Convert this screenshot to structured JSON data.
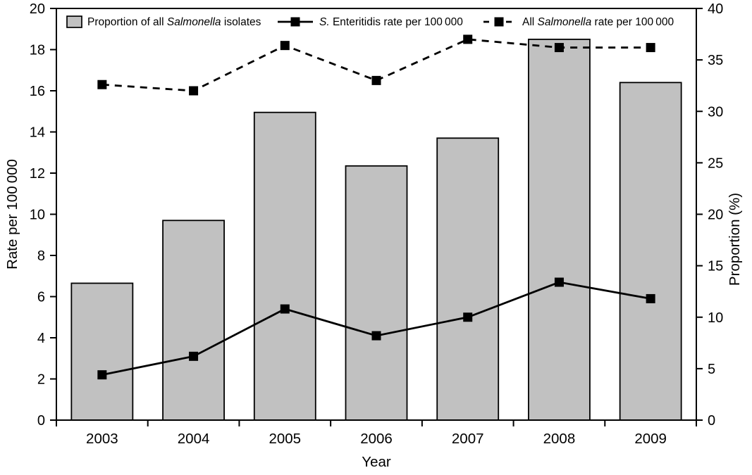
{
  "chart_data": {
    "type": "combo-bar-line",
    "title": "",
    "xlabel": "Year",
    "categories": [
      "2003",
      "2004",
      "2005",
      "2006",
      "2007",
      "2008",
      "2009"
    ],
    "series": [
      {
        "name": "Proportion of all Salmonella isolates",
        "type": "bar",
        "axis": "right",
        "unit": "%",
        "values": [
          13.3,
          19.4,
          29.9,
          24.7,
          27.4,
          37.0,
          32.8
        ],
        "legend_segments": [
          {
            "t": "Proportion of all "
          },
          {
            "t": "Salmonella",
            "i": true
          },
          {
            "t": " isolates"
          }
        ]
      },
      {
        "name": "S. Enteritidis rate per 100 000",
        "type": "line",
        "line_style": "solid",
        "marker": "filled-square",
        "axis": "left",
        "unit": "per 100 000",
        "values": [
          2.2,
          3.1,
          5.4,
          4.1,
          5.0,
          6.7,
          5.9
        ],
        "legend_segments": [
          {
            "t": "S.",
            "i": true
          },
          {
            "t": " Enteritidis rate per 100 000"
          }
        ]
      },
      {
        "name": "All Salmonella rate per 100 000",
        "type": "line",
        "line_style": "dashed",
        "marker": "filled-square",
        "axis": "left",
        "unit": "per 100 000",
        "values": [
          16.3,
          16.0,
          18.2,
          16.5,
          18.5,
          18.1,
          18.1
        ],
        "legend_segments": [
          {
            "t": "All "
          },
          {
            "t": "Salmonella",
            "i": true
          },
          {
            "t": " rate per 100 000"
          }
        ]
      }
    ],
    "left_axis": {
      "label": "Rate per 100 000",
      "min": 0,
      "max": 20,
      "ticks": [
        0,
        2,
        4,
        6,
        8,
        10,
        12,
        14,
        16,
        18,
        20
      ]
    },
    "right_axis": {
      "label": "Proportion (%)",
      "min": 0,
      "max": 40,
      "ticks": [
        0,
        5,
        10,
        15,
        20,
        25,
        30,
        35,
        40
      ]
    },
    "legend_position": "top-inside-horizontal",
    "grid": false
  },
  "colors": {
    "background": "#ffffff",
    "bar_fill": "#c1c1c1",
    "bar_stroke": "#000000",
    "line": "#000000",
    "frame": "#000000",
    "text": "#000000"
  }
}
